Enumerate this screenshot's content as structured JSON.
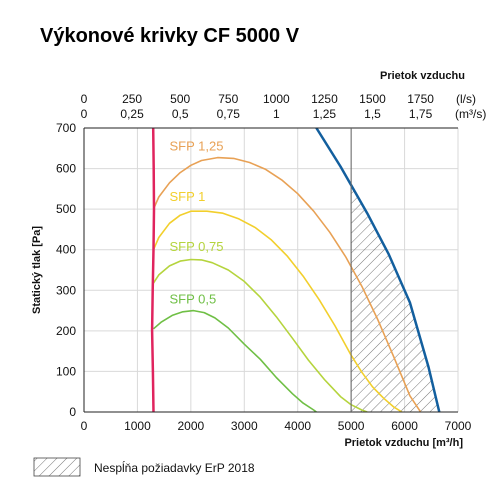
{
  "title": "Výkonové krivky CF 5000 V",
  "chart_data": {
    "type": "line",
    "title": "Výkonové krivky CF 5000 V",
    "xlabel": "Prietok vzduchu [m³/h]",
    "ylabel": "Statický tlak [Pa]",
    "x_ticks": [
      "0",
      "1000",
      "2000",
      "3000",
      "4000",
      "5000",
      "6000",
      "7000"
    ],
    "xlim": [
      0,
      7000
    ],
    "y_ticks": [
      "0",
      "100",
      "200",
      "300",
      "400",
      "500",
      "600",
      "700"
    ],
    "ylim": [
      0,
      700
    ],
    "top_axis": {
      "label": "Prietok vzduchu",
      "ticks_ls": [
        "0",
        "250",
        "500",
        "750",
        "1000",
        "1250",
        "1500",
        "1750"
      ],
      "ticks_m3s": [
        "0",
        "0,25",
        "0,5",
        "0,75",
        "1",
        "1,25",
        "1,5",
        "1,75"
      ],
      "unit_ls": "(l/s)",
      "unit_m3s": "(m³/s)"
    },
    "grid": true,
    "series": [
      {
        "name": "SFP 1,25",
        "color": "#E8A155",
        "x": [
          1300,
          1400,
          1600,
          1800,
          2000,
          2200,
          2500,
          2800,
          3100,
          3400,
          3700,
          4000,
          4300,
          4600,
          4900,
          5200,
          5500,
          5800,
          6100,
          6300
        ],
        "y": [
          500,
          530,
          565,
          590,
          608,
          620,
          627,
          625,
          615,
          598,
          572,
          538,
          495,
          443,
          382,
          310,
          227,
          135,
          40,
          0
        ]
      },
      {
        "name": "SFP 1",
        "color": "#F2CF2C",
        "x": [
          1300,
          1400,
          1600,
          1800,
          2000,
          2300,
          2600,
          2900,
          3200,
          3500,
          3800,
          4100,
          4400,
          4700,
          5000,
          5200,
          5400,
          5600,
          5800,
          5950
        ],
        "y": [
          400,
          430,
          465,
          485,
          495,
          495,
          490,
          476,
          455,
          425,
          385,
          335,
          277,
          212,
          140,
          98,
          62,
          35,
          12,
          0
        ]
      },
      {
        "name": "SFP 0,75",
        "color": "#B5D43D",
        "x": [
          1300,
          1400,
          1600,
          1800,
          2000,
          2200,
          2400,
          2700,
          3000,
          3300,
          3600,
          3900,
          4200,
          4500,
          4800,
          5000,
          5200,
          5300
        ],
        "y": [
          318,
          338,
          360,
          372,
          376,
          375,
          368,
          350,
          322,
          283,
          235,
          182,
          128,
          80,
          38,
          18,
          5,
          0
        ]
      },
      {
        "name": "SFP 0,5",
        "color": "#6FBF45",
        "x": [
          1300,
          1450,
          1650,
          1850,
          2050,
          2250,
          2450,
          2700,
          3000,
          3300,
          3600,
          3900,
          4100,
          4300,
          4350
        ],
        "y": [
          205,
          222,
          238,
          247,
          250,
          245,
          232,
          207,
          167,
          130,
          85,
          45,
          22,
          5,
          0
        ]
      },
      {
        "name": "",
        "color": "#E0245E",
        "x": [
          1300,
          1290,
          1275,
          1285,
          1300,
          1310,
          1305,
          1295
        ],
        "y": [
          0,
          100,
          200,
          300,
          400,
          500,
          600,
          700
        ]
      },
      {
        "name": "",
        "color": "#135F9E",
        "x": [
          4350,
          4800,
          5300,
          5700,
          6100,
          6450,
          6650
        ],
        "y": [
          700,
          605,
          490,
          390,
          270,
          110,
          0
        ]
      }
    ],
    "legend": [
      {
        "label": "Nespĺňa požiadavky ErP 2018",
        "pattern": "hatched"
      }
    ]
  }
}
